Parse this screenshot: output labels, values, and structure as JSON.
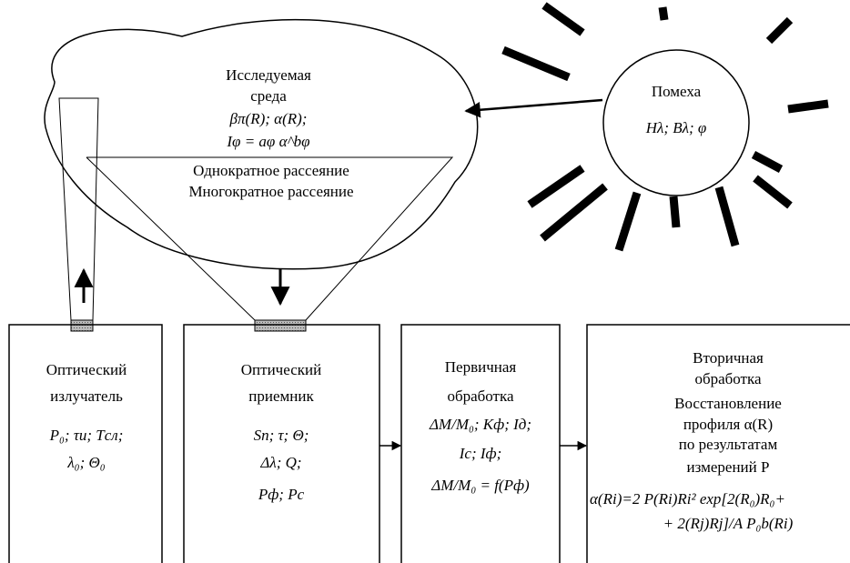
{
  "cloud": {
    "lines": [
      "Исследуемая",
      "среда",
      "βπ(R); α(R);",
      "Iφ = aφ α^bφ"
    ]
  },
  "scattering": [
    "Однократное рассеяние",
    "Многократное рассеяние"
  ],
  "noise": {
    "title": "Помеха",
    "params": "Hλ; Bλ; φ"
  },
  "blocks": [
    {
      "lines": [
        "Оптический",
        "излучатель",
        "P₀; τи; Tсл;",
        "λ₀; Θ₀"
      ]
    },
    {
      "lines": [
        "Оптический",
        "приемник",
        "Sп; τ; Θ;",
        "Δλ; Q;",
        "Pф; Pc"
      ]
    },
    {
      "lines": [
        "Первичная",
        "обработка",
        "ΔM/M₀; Kф; Iд;",
        "Ic; Iф;",
        "ΔM/M₀ = f(Pф)"
      ]
    },
    {
      "lines": [
        "Вторичная",
        "обработка",
        "Восстановление",
        "профиля α(R)",
        "по результатам",
        "измерений P",
        "α(Ri)=2 P(Ri)Ri² exp[2(R₀)R₀+",
        "+ 2(Rj)Rj]/A P₀b(Ri)"
      ]
    }
  ]
}
